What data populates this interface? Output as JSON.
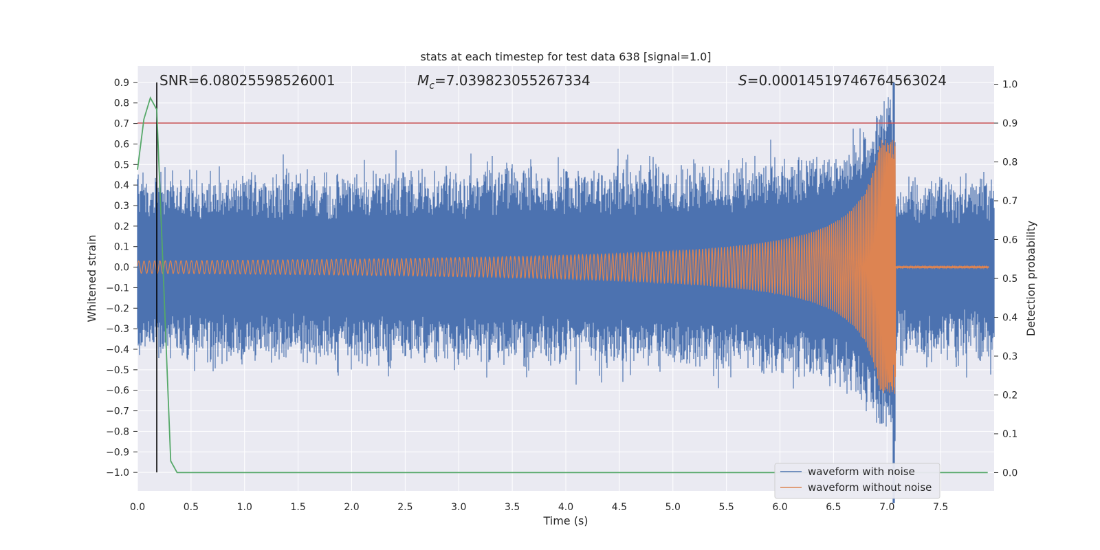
{
  "chart_data": {
    "type": "line",
    "title": "stats at each timestep for test data 638 [signal=1.0]",
    "xlabel": "Time (s)",
    "ylabel": "Whitened strain",
    "y2label": "Detection probability",
    "xlim": [
      0.0,
      8.0
    ],
    "ylim": [
      -1.09,
      0.98
    ],
    "y2lim": [
      -0.047,
      1.047
    ],
    "xticks": [
      "0.0",
      "0.5",
      "1.0",
      "1.5",
      "2.0",
      "2.5",
      "3.0",
      "3.5",
      "4.0",
      "4.5",
      "5.0",
      "5.5",
      "6.0",
      "6.5",
      "7.0",
      "7.5"
    ],
    "yticks": [
      "0.9",
      "0.8",
      "0.7",
      "0.6",
      "0.5",
      "0.4",
      "0.3",
      "0.2",
      "0.1",
      "0.0",
      "−0.1",
      "−0.2",
      "−0.3",
      "−0.4",
      "−0.5",
      "−0.6",
      "−0.7",
      "−0.8",
      "−0.9",
      "−1.0"
    ],
    "y2ticks": [
      "1.0",
      "0.9",
      "0.8",
      "0.7",
      "0.6",
      "0.5",
      "0.4",
      "0.3",
      "0.2",
      "0.1",
      "0.0"
    ],
    "annotations": {
      "snr": "SNR=6.08025598526001",
      "mc_symbol": "M",
      "mc_sub": "c",
      "mc_value": "=7.039823055267334",
      "s_symbol": "S",
      "s_value": "=0.00014519746764563024"
    },
    "threshold": {
      "value": 0.9,
      "axis": "right",
      "color": "#c44e52"
    },
    "marker_line": {
      "x": 0.18,
      "y_range": [
        -1.0,
        0.9
      ],
      "color": "#000000"
    },
    "series": [
      {
        "name": "waveform with noise",
        "color": "#4c72b0",
        "noise_envelope": 0.47,
        "merger_time": 7.06,
        "merger_peak": [
          -1.15,
          0.9
        ]
      },
      {
        "name": "waveform without noise",
        "color": "#dd8452",
        "start_amplitude": 0.03,
        "peak_amplitude": 0.62,
        "merger_time": 7.08,
        "start_period": 0.05,
        "end_period": 0.012
      },
      {
        "name": "detection probability",
        "color": "#55a868",
        "axis": "right",
        "x": [
          0.0,
          0.06,
          0.12,
          0.18,
          0.25,
          0.31,
          0.37,
          0.5,
          1.0,
          2.0,
          3.0,
          4.0,
          5.0,
          6.0,
          7.0,
          7.94
        ],
        "values": [
          0.78,
          0.91,
          0.965,
          0.935,
          0.45,
          0.03,
          0.0,
          0.0,
          0.0,
          0.0,
          0.0,
          0.0,
          0.0,
          0.0,
          0.0,
          0.0
        ]
      }
    ],
    "legend": {
      "position": "lower-right",
      "entries": [
        {
          "label": "waveform with noise",
          "color": "#4c72b0"
        },
        {
          "label": "waveform without noise",
          "color": "#dd8452"
        }
      ]
    },
    "grid": true
  }
}
